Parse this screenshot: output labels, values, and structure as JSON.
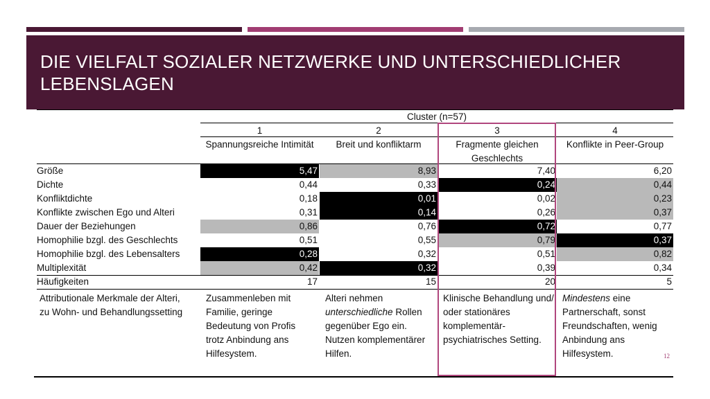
{
  "title": "Die Vielfalt sozialer Netzwerke und unterschiedlicher Lebenslagen",
  "cluster_header": "Cluster (n=57)",
  "clusters": [
    {
      "number": "1",
      "name": "Spannungsreiche Intimität"
    },
    {
      "number": "2",
      "name": "Breit und konfliktarm"
    },
    {
      "number": "3",
      "name": "Fragmente gleichen Geschlechts"
    },
    {
      "number": "4",
      "name": "Konflikte in Peer-Group"
    }
  ],
  "rows": [
    {
      "label": "Größe",
      "values": [
        "5,47",
        "8,93",
        "7,40",
        "6,20"
      ],
      "shade": [
        "black",
        "grey",
        "",
        ""
      ]
    },
    {
      "label": "Dichte",
      "values": [
        "0,44",
        "0,33",
        "0,24",
        "0,44"
      ],
      "shade": [
        "",
        "",
        "black",
        "grey"
      ]
    },
    {
      "label": "Konfliktdichte",
      "values": [
        "0,18",
        "0,01",
        "0,02",
        "0,23"
      ],
      "shade": [
        "",
        "black",
        "",
        "grey"
      ]
    },
    {
      "label": "Konflikte zwischen Ego und Alteri",
      "values": [
        "0,31",
        "0,14",
        "0,26",
        "0,37"
      ],
      "shade": [
        "",
        "black",
        "",
        "grey"
      ]
    },
    {
      "label": "Dauer der Beziehungen",
      "values": [
        "0,86",
        "0,76",
        "0,72",
        "0,77"
      ],
      "shade": [
        "grey",
        "",
        "black",
        ""
      ]
    },
    {
      "label": "Homophilie bzgl. des Geschlechts",
      "values": [
        "0,51",
        "0,55",
        "0,79",
        "0,37"
      ],
      "shade": [
        "",
        "",
        "grey",
        "black"
      ]
    },
    {
      "label": "Homophilie bzgl. des Lebensalters",
      "values": [
        "0,28",
        "0,32",
        "0,51",
        "0,82"
      ],
      "shade": [
        "black",
        "",
        "",
        "grey"
      ]
    },
    {
      "label": "Multiplexität",
      "values": [
        "0,42",
        "0,32",
        "0,39",
        "0,34"
      ],
      "shade": [
        "grey",
        "black",
        "",
        ""
      ]
    },
    {
      "label": "Häufigkeiten",
      "values": [
        "17",
        "15",
        "20",
        "5"
      ],
      "shade": [
        "",
        "",
        "",
        ""
      ]
    }
  ],
  "attributes": {
    "label": "Attributionale Merkmale der Alteri, zu Wohn- und Behandlungssetting",
    "c1": "Zusammenleben mit Familie, geringe Bedeutung von Profis trotz Anbindung ans Hilfesystem.",
    "c2_before": "Alteri nehmen ",
    "c2_italic": "unterschiedliche",
    "c2_after": " Rollen gegenüber Ego ein. Nutzen komplementärer Hilfen.",
    "c3": "Klinische Behandlung und/ oder stationäres komplementär-psychiatrisches Setting.",
    "c4_italic": "Mindestens",
    "c4_after": " eine Partnerschaft, sonst Freundschaften, wenig Anbindung ans Hilfesystem."
  },
  "page_number": "12",
  "colors": {
    "header_bg": "#4a1834",
    "accent_magenta": "#a13d72",
    "accent_grey": "#a7aab0",
    "highlight_border": "#b0467d",
    "shade_grey": "#b9b9b9",
    "shade_black": "#000000"
  }
}
